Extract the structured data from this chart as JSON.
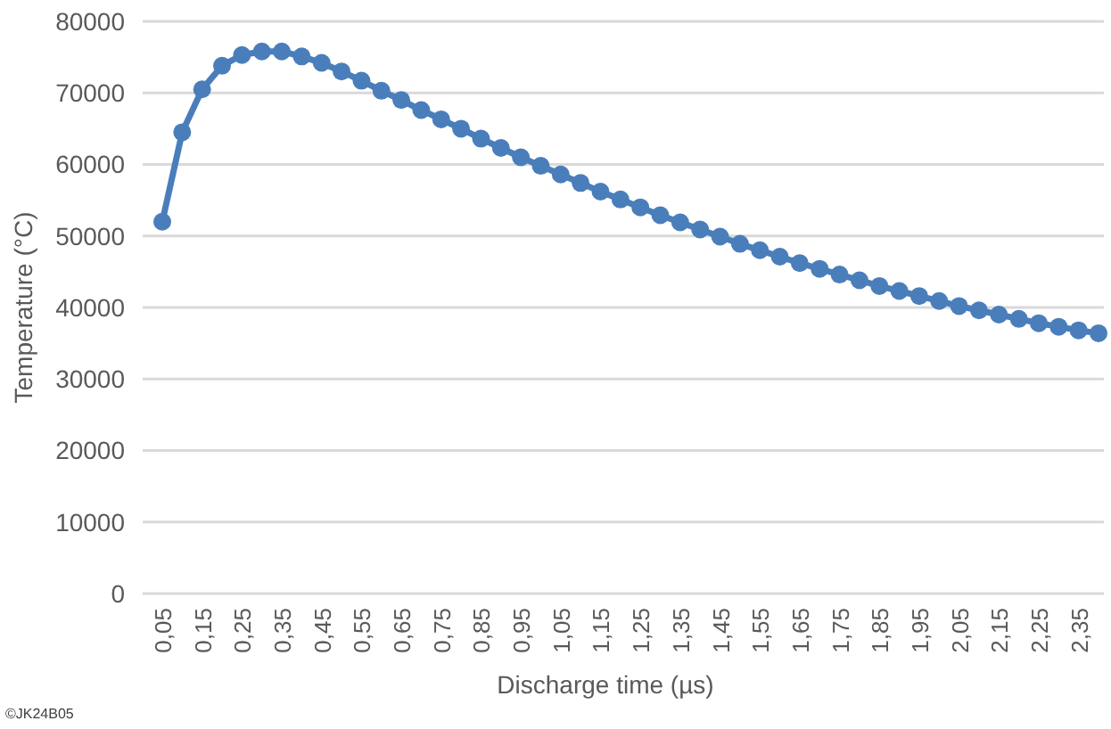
{
  "chart_data": {
    "type": "line",
    "xlabel": "Discharge time (µs)",
    "ylabel": "Temperature (°C)",
    "categories": [
      "0,05",
      null,
      "0,15",
      null,
      "0,25",
      null,
      "0,35",
      null,
      "0,45",
      null,
      "0,55",
      null,
      "0,65",
      null,
      "0,75",
      null,
      "0,85",
      null,
      "0,95",
      null,
      "1,05",
      null,
      "1,15",
      null,
      "1,25",
      null,
      "1,35",
      null,
      "1,45",
      null,
      "1,55",
      null,
      "1,65",
      null,
      "1,75",
      null,
      "1,85",
      null,
      "1,95",
      null,
      "2,05",
      null,
      "2,15",
      null,
      "2,25",
      null,
      "2,35",
      null
    ],
    "series": [
      {
        "color": "#4a7ebb",
        "values": [
          52000,
          64500,
          70500,
          73800,
          75300,
          75800,
          75800,
          75100,
          74200,
          73000,
          71700,
          70300,
          69000,
          67600,
          66300,
          65000,
          63600,
          62300,
          61000,
          59800,
          58600,
          57400,
          56200,
          55100,
          54000,
          52900,
          51900,
          50900,
          49900,
          48900,
          48000,
          47100,
          46200,
          45400,
          44600,
          43800,
          43000,
          42300,
          41600,
          40900,
          40200,
          39600,
          39000,
          38400,
          37800,
          37300,
          36800,
          36400
        ]
      }
    ],
    "ylim": [
      0,
      80000
    ],
    "yticks": [
      0,
      10000,
      20000,
      30000,
      40000,
      50000,
      60000,
      70000,
      80000
    ],
    "grid": "y",
    "marker": "circle",
    "line_style": "solid",
    "annotations": [
      "©JK24B05"
    ]
  }
}
